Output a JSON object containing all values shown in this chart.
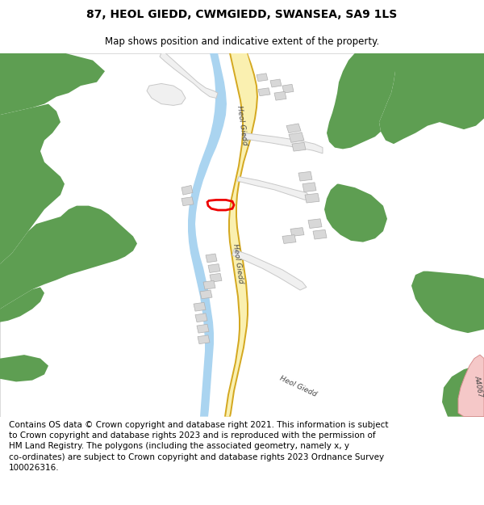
{
  "title": "87, HEOL GIEDD, CWMGIEDD, SWANSEA, SA9 1LS",
  "subtitle": "Map shows position and indicative extent of the property.",
  "footer": "Contains OS data © Crown copyright and database right 2021. This information is subject\nto Crown copyright and database rights 2023 and is reproduced with the permission of\nHM Land Registry. The polygons (including the associated geometry, namely x, y\nco-ordinates) are subject to Crown copyright and database rights 2023 Ordnance Survey\n100026316.",
  "title_fontsize": 10,
  "subtitle_fontsize": 8.5,
  "footer_fontsize": 7.5,
  "bg_color": "#ffffff",
  "map_bg": "#ffffff",
  "green_color": "#5e9e52",
  "road_color": "#faf0b0",
  "road_border_color": "#d4a820",
  "river_color": "#aad4f0",
  "building_color": "#d8d8d8",
  "building_edge_color": "#b0b0b0",
  "plot_color": "#ee0000",
  "road_b_color": "#f5c8c8",
  "road_b_border": "#d89090",
  "side_road_color": "#f0f0f0",
  "side_road_edge": "#c8c8c8"
}
